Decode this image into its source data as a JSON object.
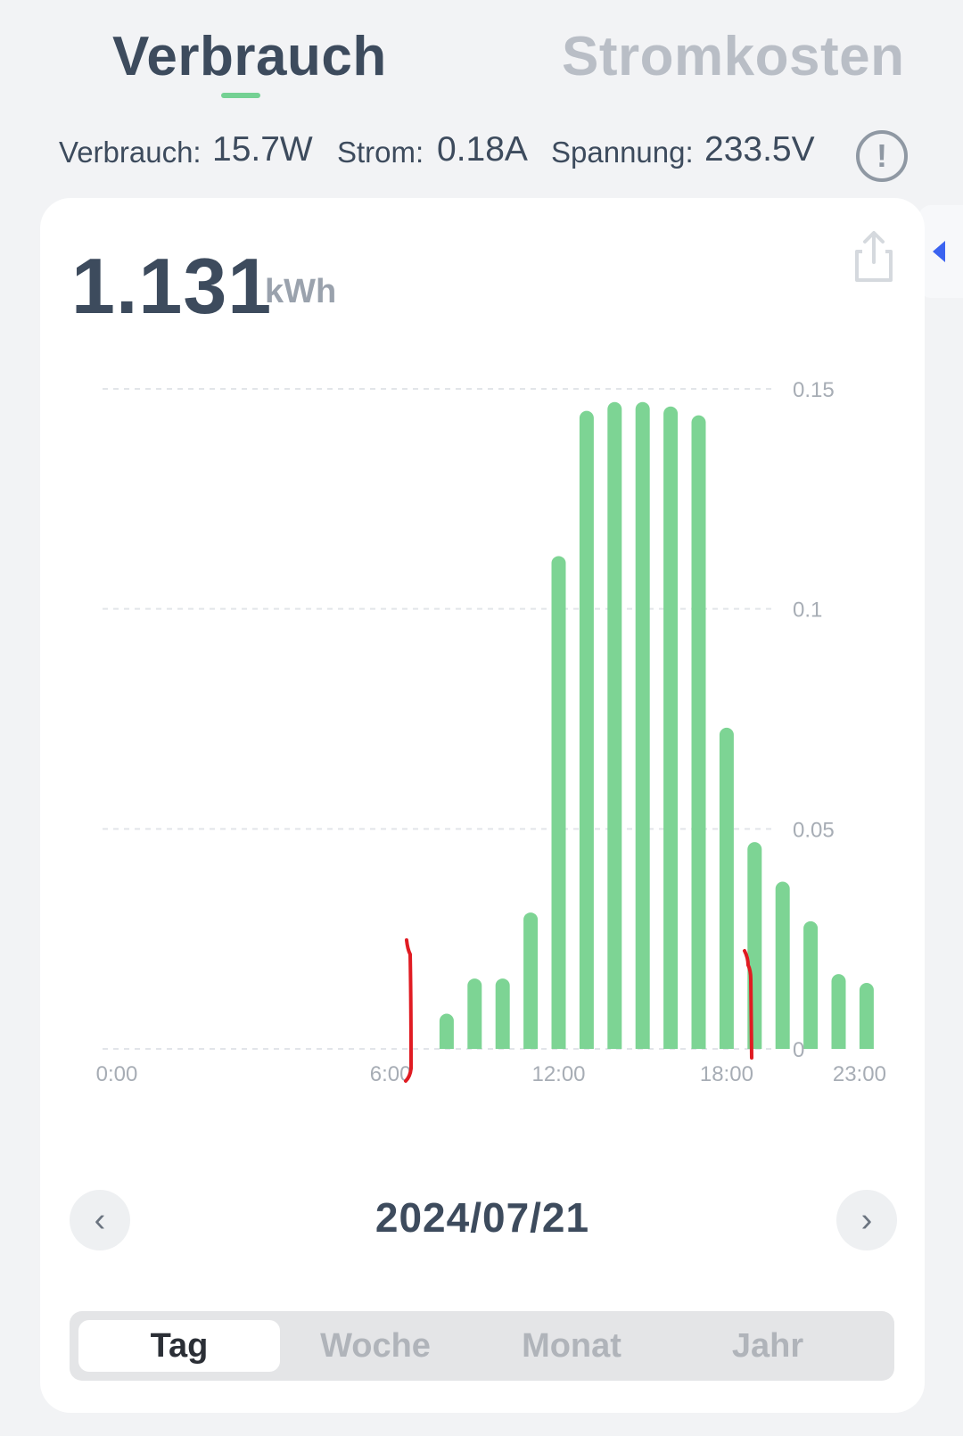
{
  "tabs": {
    "active": "Verbrauch",
    "inactive": "Stromkosten"
  },
  "stats": {
    "power_label": "Verbrauch:",
    "power_value": "15.7W",
    "current_label": "Strom:",
    "current_value": "0.18A",
    "voltage_label": "Spannung:",
    "voltage_value": "233.5V"
  },
  "info_icon": "!",
  "total": {
    "value": "1.131",
    "unit": "kWh"
  },
  "date": "2024/07/21",
  "nav": {
    "prev": "‹",
    "next": "›"
  },
  "periods": [
    "Tag",
    "Woche",
    "Monat",
    "Jahr"
  ],
  "colors": {
    "bar": "#7dd494",
    "accent": "#74d193",
    "annotation": "#e01b22"
  },
  "chart_data": {
    "type": "bar",
    "x_ticks": [
      "0:00",
      "6:00",
      "12:00",
      "18:00",
      "23:00"
    ],
    "y_ticks": [
      "0.15",
      "0.1",
      "0.05",
      "0"
    ],
    "ylim": [
      0,
      0.15
    ],
    "grid": true,
    "categories": [
      "0",
      "1",
      "2",
      "3",
      "4",
      "5",
      "6",
      "7",
      "8",
      "9",
      "10",
      "11",
      "12",
      "13",
      "14",
      "15",
      "16",
      "17",
      "18",
      "19",
      "20",
      "21",
      "22",
      "23"
    ],
    "values": [
      0,
      0,
      0,
      0,
      0,
      0,
      0,
      0,
      0.008,
      0.016,
      0.016,
      0.031,
      0.112,
      0.145,
      0.147,
      0.147,
      0.146,
      0.144,
      0.073,
      0.047,
      0.038,
      0.029,
      0.017,
      0.015
    ]
  }
}
